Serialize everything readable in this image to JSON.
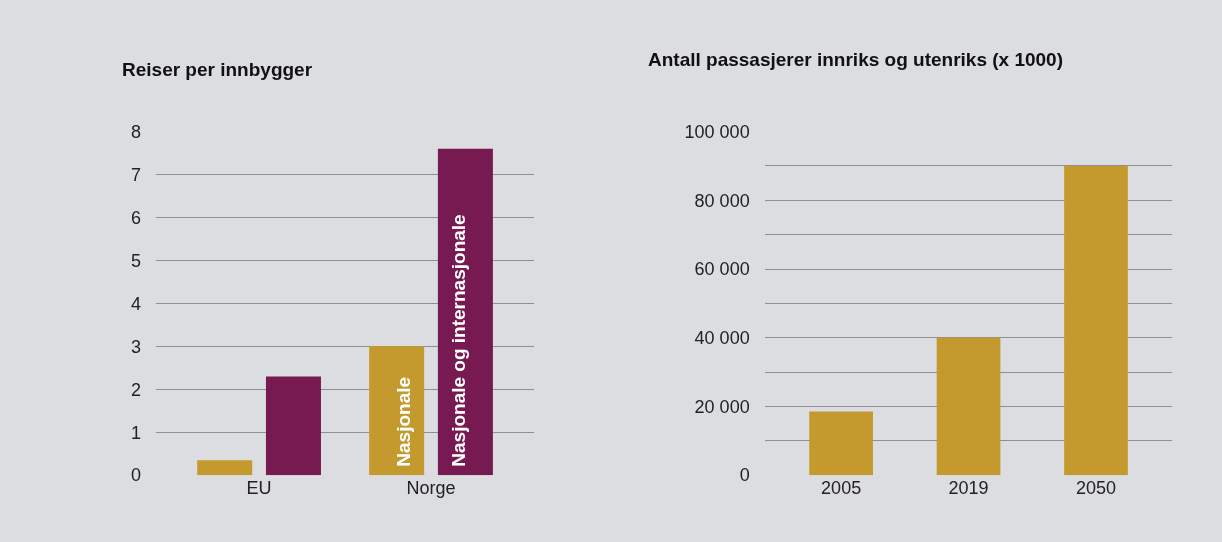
{
  "chart_data": [
    {
      "type": "bar",
      "title": "Reiser per innbygger",
      "categories": [
        "EU",
        "Norge"
      ],
      "series": [
        {
          "name": "Nasjonale",
          "color": "#c49a2f",
          "values": [
            0.35,
            3.0
          ]
        },
        {
          "name": "Nasjonale og internasjonale",
          "color": "#781a52",
          "values": [
            2.3,
            7.6
          ]
        }
      ],
      "ylim": [
        0,
        8
      ],
      "yticks": [
        0,
        1,
        2,
        3,
        4,
        5,
        6,
        7,
        8
      ],
      "grid": "y",
      "legend": false
    },
    {
      "type": "bar",
      "title": "Antall passasjerer innriks og utenriks (x 1000)",
      "categories": [
        "2005",
        "2019",
        "2050"
      ],
      "values": [
        18500,
        40000,
        90000
      ],
      "color": "#c49a2f",
      "ylim": [
        0,
        100000
      ],
      "yticks": [
        {
          "value": 0,
          "label": "0"
        },
        {
          "value": 10000,
          "label": null
        },
        {
          "value": 20000,
          "label": "20 000"
        },
        {
          "value": 30000,
          "label": null
        },
        {
          "value": 40000,
          "label": "40 000"
        },
        {
          "value": 50000,
          "label": null
        },
        {
          "value": 60000,
          "label": "60 000"
        },
        {
          "value": 70000,
          "label": null
        },
        {
          "value": 80000,
          "label": "80 000"
        },
        {
          "value": 90000,
          "label": null
        },
        {
          "value": 100000,
          "label": "100 000"
        }
      ],
      "grid": "y",
      "legend": false
    }
  ]
}
